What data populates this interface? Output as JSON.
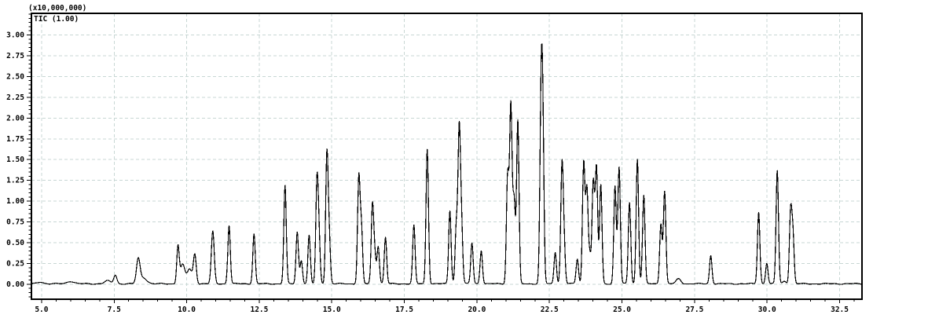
{
  "panel": {
    "background": "#ffffff"
  },
  "chart_data": {
    "type": "line",
    "title": "",
    "xlabel": "",
    "ylabel": "",
    "y_axis_multiplier": "(x10,000,000)",
    "trace_label": "TIC (1.00)",
    "xlim": [
      4.65,
      33.27
    ],
    "ylim": [
      -0.18,
      3.26
    ],
    "x_major_ticks": [
      5.0,
      7.5,
      10.0,
      12.5,
      15.0,
      17.5,
      20.0,
      22.5,
      25.0,
      27.5,
      30.0,
      32.5
    ],
    "x_tick_labels": [
      "5.0",
      "7.5",
      "10.0",
      "12.5",
      "15.0",
      "17.5",
      "20.0",
      "22.5",
      "25.0",
      "27.5",
      "30.0",
      "32.5"
    ],
    "x_minor_step": 0.5,
    "y_major_ticks": [
      0.0,
      0.25,
      0.5,
      0.75,
      1.0,
      1.25,
      1.5,
      1.75,
      2.0,
      2.25,
      2.5,
      2.75,
      3.0
    ],
    "y_tick_labels": [
      "0.00",
      "0.25",
      "0.50",
      "0.75",
      "1.00",
      "1.25",
      "1.50",
      "1.75",
      "2.00",
      "2.25",
      "2.50",
      "2.75",
      "3.00"
    ],
    "y_minor_step": 0.05,
    "grid": true,
    "grid_color": "#c8d7d4",
    "axis_color": "#000000",
    "trace_color": "#000000",
    "baseline": 0.006,
    "peak_default_width": 0.042,
    "peaks": [
      {
        "t": 4.96,
        "h": 0.022,
        "w": 0.1
      },
      {
        "t": 6.0,
        "h": 0.03,
        "w": 0.12
      },
      {
        "t": 7.27,
        "h": 0.035,
        "w": 0.1
      },
      {
        "t": 7.54,
        "h": 0.105,
        "w": 0.055
      },
      {
        "t": 8.33,
        "h": 0.285,
        "w": 0.06
      },
      {
        "t": 8.5,
        "h": 0.075,
        "w": 0.12
      },
      {
        "t": 9.7,
        "h": 0.44
      },
      {
        "t": 9.86,
        "h": 0.23,
        "w": 0.08
      },
      {
        "t": 10.1,
        "h": 0.175,
        "w": 0.08
      },
      {
        "t": 10.28,
        "h": 0.35,
        "w": 0.05
      },
      {
        "t": 10.9,
        "h": 0.63,
        "w": 0.05
      },
      {
        "t": 11.46,
        "h": 0.7
      },
      {
        "t": 12.32,
        "h": 0.6
      },
      {
        "t": 13.39,
        "h": 1.18
      },
      {
        "t": 13.81,
        "h": 0.62
      },
      {
        "t": 13.95,
        "h": 0.28
      },
      {
        "t": 14.22,
        "h": 0.58
      },
      {
        "t": 14.49,
        "h": 1.2
      },
      {
        "t": 14.56,
        "h": 0.5
      },
      {
        "t": 14.83,
        "h": 1.54
      },
      {
        "t": 14.91,
        "h": 0.54
      },
      {
        "t": 15.93,
        "h": 1.26
      },
      {
        "t": 16.02,
        "h": 0.66
      },
      {
        "t": 16.4,
        "h": 0.93
      },
      {
        "t": 16.48,
        "h": 0.33
      },
      {
        "t": 16.6,
        "h": 0.45
      },
      {
        "t": 16.85,
        "h": 0.56
      },
      {
        "t": 17.83,
        "h": 0.7
      },
      {
        "t": 18.29,
        "h": 1.62
      },
      {
        "t": 19.07,
        "h": 0.88
      },
      {
        "t": 19.29,
        "h": 0.68
      },
      {
        "t": 19.39,
        "h": 1.8
      },
      {
        "t": 19.47,
        "h": 0.7
      },
      {
        "t": 19.83,
        "h": 0.49
      },
      {
        "t": 20.15,
        "h": 0.4
      },
      {
        "t": 21.06,
        "h": 1.31
      },
      {
        "t": 21.17,
        "h": 2.13
      },
      {
        "t": 21.28,
        "h": 1.0
      },
      {
        "t": 21.41,
        "h": 1.96
      },
      {
        "t": 22.21,
        "h": 1.94
      },
      {
        "t": 22.27,
        "h": 1.8
      },
      {
        "t": 22.7,
        "h": 0.38
      },
      {
        "t": 22.93,
        "h": 1.36
      },
      {
        "t": 23.0,
        "h": 0.48
      },
      {
        "t": 23.46,
        "h": 0.3
      },
      {
        "t": 23.68,
        "h": 1.45
      },
      {
        "t": 23.79,
        "h": 1.13
      },
      {
        "t": 23.89,
        "h": 0.33
      },
      {
        "t": 24.01,
        "h": 1.21
      },
      {
        "t": 24.12,
        "h": 1.39
      },
      {
        "t": 24.27,
        "h": 1.19
      },
      {
        "t": 24.76,
        "h": 1.17
      },
      {
        "t": 24.9,
        "h": 1.4
      },
      {
        "t": 25.26,
        "h": 0.98
      },
      {
        "t": 25.53,
        "h": 1.5
      },
      {
        "t": 25.75,
        "h": 1.06
      },
      {
        "t": 26.34,
        "h": 0.72
      },
      {
        "t": 26.47,
        "h": 1.11
      },
      {
        "t": 26.95,
        "h": 0.06,
        "w": 0.08
      },
      {
        "t": 28.06,
        "h": 0.34
      },
      {
        "t": 29.71,
        "h": 0.86
      },
      {
        "t": 29.99,
        "h": 0.25
      },
      {
        "t": 30.35,
        "h": 1.36
      },
      {
        "t": 30.6,
        "h": 0.03,
        "w": 0.06
      },
      {
        "t": 30.81,
        "h": 0.85
      },
      {
        "t": 30.89,
        "h": 0.58
      }
    ]
  }
}
